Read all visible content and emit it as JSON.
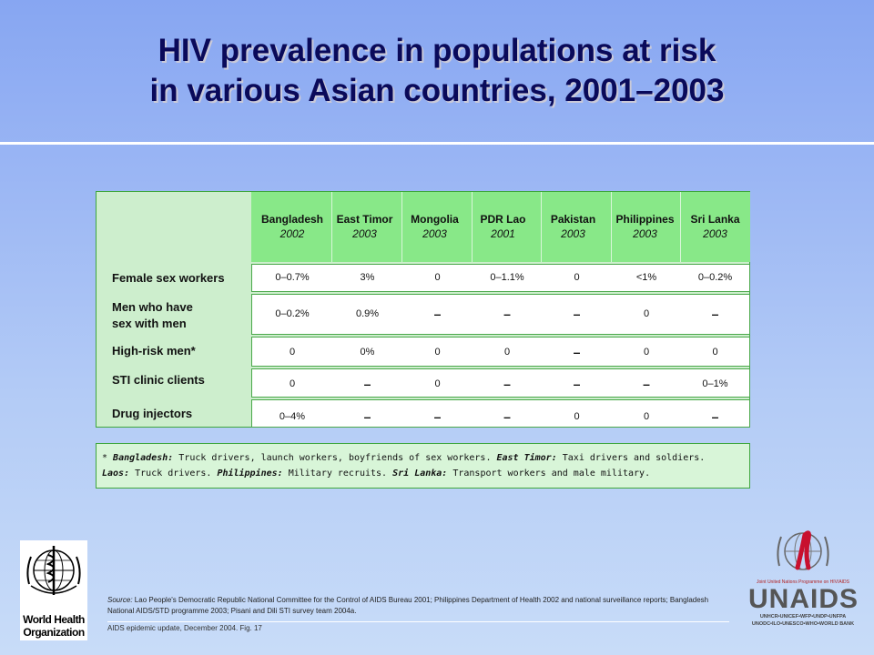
{
  "title": {
    "line1": "HIV prevalence in populations at risk",
    "line2": "in various Asian countries, 2001–2003"
  },
  "table": {
    "columns": [
      {
        "country": "Bangladesh",
        "year": "2002"
      },
      {
        "country": "East Timor",
        "year": "2003"
      },
      {
        "country": "Mongolia",
        "year": "2003"
      },
      {
        "country": "PDR Lao",
        "year": "2001"
      },
      {
        "country": "Pakistan",
        "year": "2003"
      },
      {
        "country": "Philippines",
        "year": "2003"
      },
      {
        "country": "Sri Lanka",
        "year": "2003"
      }
    ],
    "rows": [
      {
        "label_line1": "Female sex workers",
        "label_line2": "",
        "cells": [
          "0–0.7%",
          "3%",
          "0",
          "0–1.1%",
          "0",
          "<1%",
          "0–0.2%"
        ]
      },
      {
        "label_line1": "Men who have",
        "label_line2": "sex with men",
        "cells": [
          "0–0.2%",
          "0.9%",
          "–",
          "–",
          "–",
          "0",
          "–"
        ]
      },
      {
        "label_line1": "High-risk men*",
        "label_line2": "",
        "cells": [
          "0",
          "0%",
          "0",
          "0",
          "–",
          "0",
          "0"
        ]
      },
      {
        "label_line1": "STI clinic clients",
        "label_line2": "",
        "cells": [
          "0",
          "–",
          "0",
          "–",
          "–",
          "–",
          "0–1%"
        ]
      },
      {
        "label_line1": "Drug injectors",
        "label_line2": "",
        "cells": [
          "0–4%",
          "–",
          "–",
          "–",
          "0",
          "0",
          "–"
        ]
      }
    ]
  },
  "note": {
    "star": "* ",
    "k1": "Bangladesh:",
    "t1": " Truck drivers, launch workers, boyfriends of sex workers. ",
    "k2": "East Timor:",
    "t2": " Taxi drivers and soldiers.",
    "k3": "Laos:",
    "t3": " Truck drivers.  ",
    "k4": "Philippines:",
    "t4": " Military recruits.  ",
    "k5": "Sri Lanka:",
    "t5": " Transport workers and male military."
  },
  "source": {
    "label": "Source:",
    "text": " Lao People's Democratic Republic National Committee for the Control of AIDS Bureau 2001; Philippines Department of Health 2002 and national surveillance reports; Bangladesh National AIDS/STD programme 2003; Pisani and Dili STI survey team 2004a."
  },
  "footer": "AIDS epidemic update, December 2004.  Fig. 17",
  "who": {
    "line1": "World Health",
    "line2": "Organization"
  },
  "unaids": {
    "tagline": "Joint United Nations Programme on HIV/AIDS",
    "word": "UNAIDS",
    "sub1": "UNHCR•UNICEF•WFP•UNDP•UNFPA",
    "sub2": "UNODC•ILO•UNESCO•WHO•WORLD BANK"
  },
  "colors": {
    "header_green": "#88e888",
    "panel_green": "#cdeecd",
    "border_green": "#3ea63e",
    "title_navy": "#0a0a5a"
  }
}
